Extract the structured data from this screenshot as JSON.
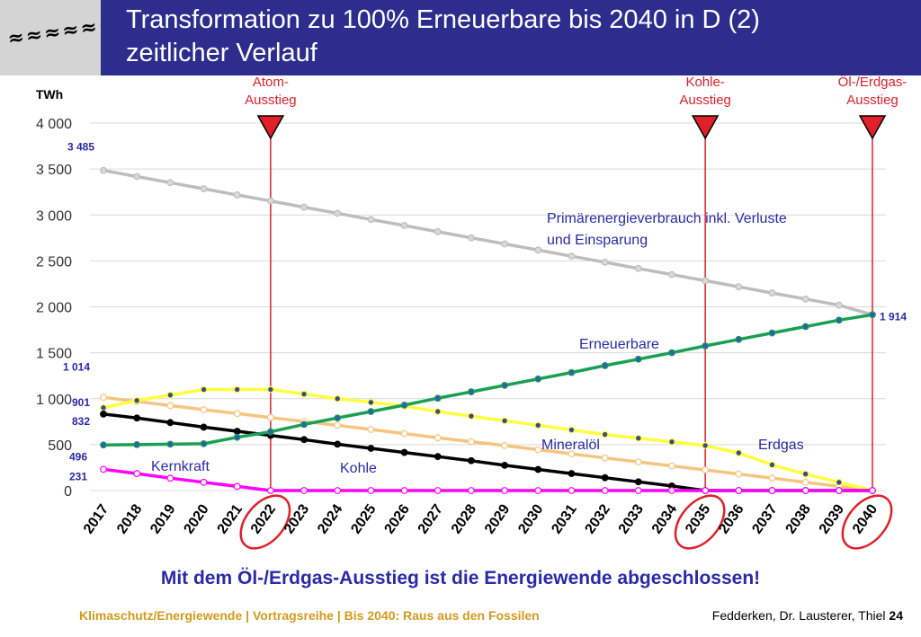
{
  "logo": {
    "text": "≈≈≈≈≈≈"
  },
  "header": {
    "title_line1": "Transformation zu 100% Erneuerbare bis 2040 in D (2)",
    "title_line2": "zeitlicher Verlauf"
  },
  "chart_data": {
    "type": "line",
    "ylabel": "TWh",
    "ylim": [
      0,
      4000
    ],
    "yticks": [
      0,
      500,
      1000,
      1500,
      2000,
      2500,
      3000,
      3500,
      4000
    ],
    "ytick_labels": [
      "0",
      "500",
      "1 000",
      "1 500",
      "2 000",
      "2 500",
      "3 000",
      "3 500",
      "4 000"
    ],
    "grid": true,
    "categories": [
      "2017",
      "2018",
      "2019",
      "2020",
      "2021",
      "2022",
      "2023",
      "2024",
      "2025",
      "2026",
      "2027",
      "2028",
      "2029",
      "2030",
      "2031",
      "2032",
      "2033",
      "2034",
      "2035",
      "2036",
      "2037",
      "2038",
      "2039",
      "2040"
    ],
    "highlighted_years": [
      "2022",
      "2035",
      "2040"
    ],
    "series": [
      {
        "name": "Primärenergieverbrauch inkl. Verluste und Einsparung",
        "color": "#bdbdbd",
        "marker_fill": "#d9d9d9",
        "values": [
          3485,
          3418,
          3352,
          3285,
          3218,
          3152,
          3085,
          3018,
          2951,
          2885,
          2818,
          2751,
          2685,
          2618,
          2551,
          2485,
          2418,
          2351,
          2285,
          2218,
          2151,
          2085,
          2018,
          1914
        ]
      },
      {
        "name": "Erneuerbare",
        "color": "#1aa052",
        "marker_fill": "#2f5fb0",
        "values": [
          496,
          500,
          505,
          510,
          580,
          640,
          720,
          790,
          860,
          930,
          1005,
          1075,
          1145,
          1215,
          1285,
          1360,
          1430,
          1500,
          1575,
          1645,
          1715,
          1785,
          1855,
          1914
        ]
      },
      {
        "name": "Mineralöl",
        "color": "#f5c580",
        "marker_fill": "#ffffff",
        "values": [
          1014,
          970,
          925,
          880,
          838,
          795,
          752,
          710,
          665,
          620,
          575,
          532,
          490,
          445,
          400,
          355,
          312,
          268,
          225,
          180,
          135,
          90,
          45,
          0
        ]
      },
      {
        "name": "Erdgas",
        "color": "#ffff40",
        "marker_fill": "#3a4a90",
        "values": [
          901,
          980,
          1040,
          1100,
          1100,
          1100,
          1050,
          1000,
          960,
          920,
          860,
          810,
          760,
          710,
          660,
          610,
          570,
          530,
          490,
          410,
          280,
          180,
          90,
          0
        ]
      },
      {
        "name": "Kohle",
        "color": "#000000",
        "marker_fill": "#000000",
        "values": [
          832,
          790,
          740,
          690,
          645,
          600,
          555,
          505,
          460,
          415,
          370,
          325,
          275,
          230,
          185,
          140,
          95,
          50,
          0,
          0,
          0,
          0,
          0,
          0
        ]
      },
      {
        "name": "Kernkraft",
        "color": "#ff00ff",
        "marker_fill": "#ffffff",
        "values": [
          231,
          185,
          135,
          90,
          45,
          0,
          0,
          0,
          0,
          0,
          0,
          0,
          0,
          0,
          0,
          0,
          0,
          0,
          0,
          0,
          0,
          0,
          0,
          0
        ]
      }
    ],
    "data_labels": [
      {
        "text": "3 485",
        "year": "2017",
        "value": 3485
      },
      {
        "text": "1 014",
        "year": "2017",
        "value": 1014
      },
      {
        "text": "901",
        "year": "2017",
        "value": 901
      },
      {
        "text": "832",
        "year": "2017",
        "value": 832
      },
      {
        "text": "496",
        "year": "2017",
        "value": 496
      },
      {
        "text": "231",
        "year": "2017",
        "value": 231
      },
      {
        "text": "1 914",
        "year": "2040",
        "value": 1914
      }
    ],
    "series_labels": [
      {
        "line1": "Primärenergieverbrauch inkl. Verluste",
        "line2": "und Einsparung"
      },
      {
        "line1": "Erneuerbare"
      },
      {
        "line1": "Mineralöl"
      },
      {
        "line1": "Erdgas"
      },
      {
        "line1": "Kohle"
      },
      {
        "line1": "Kernkraft"
      }
    ],
    "milestones": [
      {
        "year": "2022",
        "line1": "Atom-",
        "line2": "Ausstieg"
      },
      {
        "year": "2035",
        "line1": "Kohle-",
        "line2": "Ausstieg"
      },
      {
        "year": "2040",
        "line1": "Öl-/Erdgas-",
        "line2": "Ausstieg"
      }
    ]
  },
  "conclusion": "Mit dem Öl-/Erdgas-Ausstieg ist die Energiewende abgeschlossen!",
  "footer": {
    "left": "Klimaschutz/Energiewende | Vortragsreihe | Bis 2040: Raus aus den Fossilen",
    "right_authors": "Fedderken, Dr. Lausterer, Thiel",
    "page_number": "24"
  }
}
